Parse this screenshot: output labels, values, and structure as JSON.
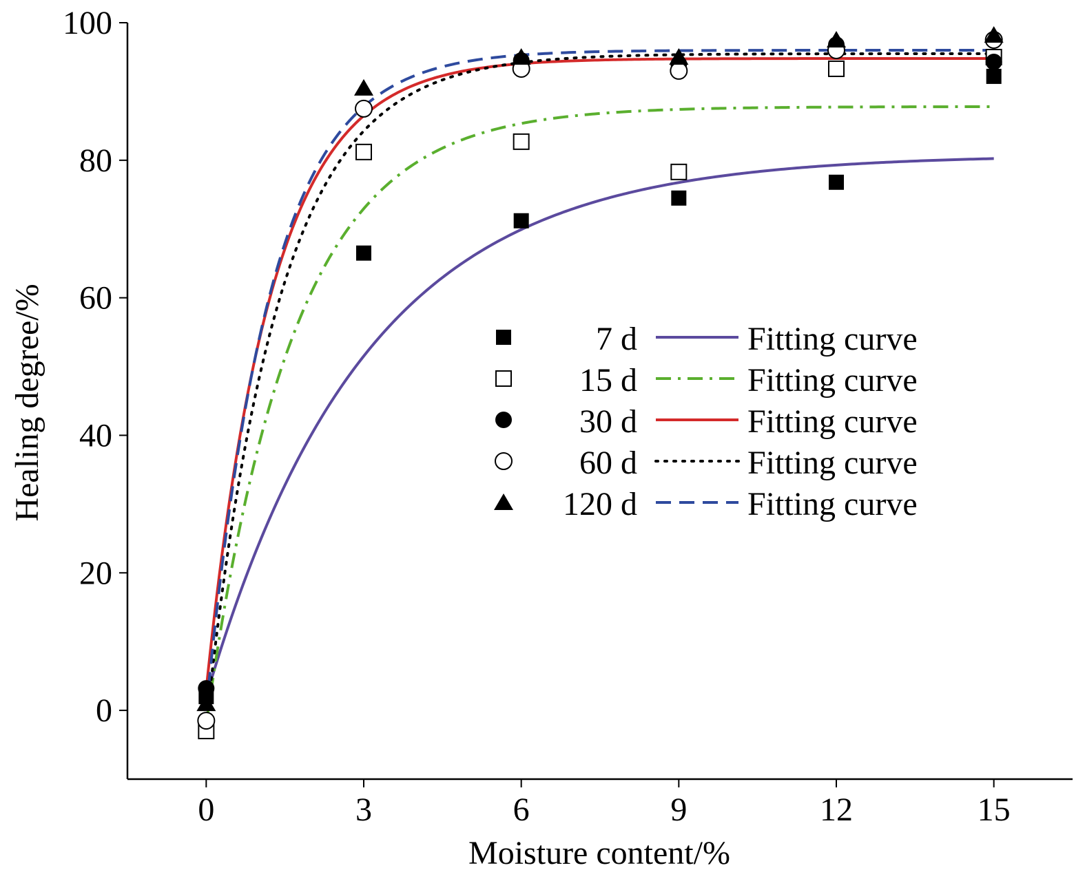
{
  "chart_data": {
    "type": "scatter",
    "title": "",
    "xlabel": "Moisture content/%",
    "ylabel": "Healing degree/%",
    "xlim": [
      -1.5,
      16.5
    ],
    "ylim": [
      -10,
      100
    ],
    "x_ticks": [
      "0",
      "3",
      "6",
      "9",
      "12",
      "15"
    ],
    "y_ticks": [
      "0",
      "20",
      "40",
      "60",
      "80",
      "100"
    ],
    "grid": false,
    "legend_position": "center-right",
    "fit_label": "Fitting curve",
    "series": [
      {
        "name": "7 d",
        "marker": "square-filled",
        "color": "#000000",
        "x": [
          0,
          3,
          6,
          9,
          12,
          15
        ],
        "y": [
          2,
          66.5,
          71.2,
          74.5,
          76.8,
          92.2
        ],
        "fit": {
          "name": "Fitting curve",
          "color": "#5b4a9e",
          "dash": "solid",
          "a": 80.8,
          "k": 0.33,
          "y0": 2
        }
      },
      {
        "name": "15 d",
        "marker": "square-open",
        "color": "#000000",
        "x": [
          0,
          3,
          6,
          9,
          12,
          15
        ],
        "y": [
          -3,
          81.2,
          82.7,
          78.3,
          93.3,
          95.0
        ],
        "fit": {
          "name": "Fitting curve",
          "color": "#5aaf2e",
          "dash": "dashdot",
          "a": 87.8,
          "k": 0.6,
          "y0": -2
        }
      },
      {
        "name": "30 d",
        "marker": "circle-filled",
        "color": "#000000",
        "x": [
          0,
          3,
          6,
          9,
          12,
          15
        ],
        "y": [
          3.2,
          87.5,
          94.5,
          94.0,
          96.8,
          94.3
        ],
        "fit": {
          "name": "Fitting curve",
          "color": "#d42a2a",
          "dash": "solid",
          "a": 94.8,
          "k": 0.8,
          "y0": 3
        }
      },
      {
        "name": "60 d",
        "marker": "circle-open",
        "color": "#000000",
        "x": [
          0,
          3,
          6,
          9,
          12,
          15
        ],
        "y": [
          -1.5,
          87.5,
          93.3,
          93.0,
          96.0,
          97.5
        ],
        "fit": {
          "name": "Fitting curve",
          "color": "#000000",
          "dash": "dotted",
          "a": 95.5,
          "k": 0.72,
          "y0": -2
        }
      },
      {
        "name": "120 d",
        "marker": "triangle-filled",
        "color": "#000000",
        "x": [
          0,
          3,
          6,
          9,
          12,
          15
        ],
        "y": [
          1.0,
          90.5,
          95.0,
          95.0,
          97.5,
          98.2
        ],
        "fit": {
          "name": "Fitting curve",
          "color": "#2e4a9e",
          "dash": "dashed",
          "a": 96.0,
          "k": 0.82,
          "y0": 0
        }
      }
    ]
  }
}
